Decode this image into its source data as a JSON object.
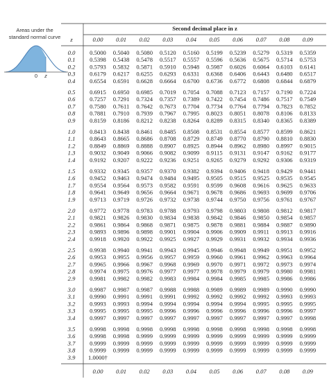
{
  "side": {
    "caption": "Areas under the standard normal curve",
    "origin_label": "0",
    "z_label": "z"
  },
  "table": {
    "title": "Second decimal place in z",
    "z_header": "z",
    "columns": [
      "0.00",
      "0.01",
      "0.02",
      "0.03",
      "0.04",
      "0.05",
      "0.06",
      "0.07",
      "0.08",
      "0.09"
    ],
    "rows": [
      {
        "z": "0.0",
        "values": [
          "0.5000",
          "0.5040",
          "0.5080",
          "0.5120",
          "0.5160",
          "0.5199",
          "0.5239",
          "0.5279",
          "0.5319",
          "0.5359"
        ]
      },
      {
        "z": "0.1",
        "values": [
          "0.5398",
          "0.5438",
          "0.5478",
          "0.5517",
          "0.5557",
          "0.5596",
          "0.5636",
          "0.5675",
          "0.5714",
          "0.5753"
        ]
      },
      {
        "z": "0.2",
        "values": [
          "0.5793",
          "0.5832",
          "0.5871",
          "0.5910",
          "0.5948",
          "0.5987",
          "0.6026",
          "0.6064",
          "0.6103",
          "0.6141"
        ]
      },
      {
        "z": "0.3",
        "values": [
          "0.6179",
          "0.6217",
          "0.6255",
          "0.6293",
          "0.6331",
          "0.6368",
          "0.6406",
          "0.6443",
          "0.6480",
          "0.6517"
        ]
      },
      {
        "z": "0.4",
        "values": [
          "0.6554",
          "0.6591",
          "0.6628",
          "0.6664",
          "0.6700",
          "0.6736",
          "0.6772",
          "0.6808",
          "0.6844",
          "0.6879"
        ]
      },
      {
        "z": "0.5",
        "values": [
          "0.6915",
          "0.6950",
          "0.6985",
          "0.7019",
          "0.7054",
          "0.7088",
          "0.7123",
          "0.7157",
          "0.7190",
          "0.7224"
        ]
      },
      {
        "z": "0.6",
        "values": [
          "0.7257",
          "0.7291",
          "0.7324",
          "0.7357",
          "0.7389",
          "0.7422",
          "0.7454",
          "0.7486",
          "0.7517",
          "0.7549"
        ]
      },
      {
        "z": "0.7",
        "values": [
          "0.7580",
          "0.7611",
          "0.7642",
          "0.7673",
          "0.7704",
          "0.7734",
          "0.7764",
          "0.7794",
          "0.7823",
          "0.7852"
        ]
      },
      {
        "z": "0.8",
        "values": [
          "0.7881",
          "0.7910",
          "0.7939",
          "0.7967",
          "0.7995",
          "0.8023",
          "0.8051",
          "0.8078",
          "0.8106",
          "0.8133"
        ]
      },
      {
        "z": "0.9",
        "values": [
          "0.8159",
          "0.8186",
          "0.8212",
          "0.8238",
          "0.8264",
          "0.8289",
          "0.8315",
          "0.8340",
          "0.8365",
          "0.8389"
        ]
      },
      {
        "z": "1.0",
        "values": [
          "0.8413",
          "0.8438",
          "0.8461",
          "0.8485",
          "0.8508",
          "0.8531",
          "0.8554",
          "0.8577",
          "0.8599",
          "0.8621"
        ]
      },
      {
        "z": "1.1",
        "values": [
          "0.8643",
          "0.8665",
          "0.8686",
          "0.8708",
          "0.8729",
          "0.8749",
          "0.8770",
          "0.8790",
          "0.8810",
          "0.8830"
        ]
      },
      {
        "z": "1.2",
        "values": [
          "0.8849",
          "0.8869",
          "0.8888",
          "0.8907",
          "0.8925",
          "0.8944",
          "0.8962",
          "0.8980",
          "0.8997",
          "0.9015"
        ]
      },
      {
        "z": "1.3",
        "values": [
          "0.9032",
          "0.9049",
          "0.9066",
          "0.9082",
          "0.9099",
          "0.9115",
          "0.9131",
          "0.9147",
          "0.9162",
          "0.9177"
        ]
      },
      {
        "z": "1.4",
        "values": [
          "0.9192",
          "0.9207",
          "0.9222",
          "0.9236",
          "0.9251",
          "0.9265",
          "0.9279",
          "0.9292",
          "0.9306",
          "0.9319"
        ]
      },
      {
        "z": "1.5",
        "values": [
          "0.9332",
          "0.9345",
          "0.9357",
          "0.9370",
          "0.9382",
          "0.9394",
          "0.9406",
          "0.9418",
          "0.9429",
          "0.9441"
        ]
      },
      {
        "z": "1.6",
        "values": [
          "0.9452",
          "0.9463",
          "0.9474",
          "0.9484",
          "0.9495",
          "0.9505",
          "0.9515",
          "0.9525",
          "0.9535",
          "0.9545"
        ]
      },
      {
        "z": "1.7",
        "values": [
          "0.9554",
          "0.9564",
          "0.9573",
          "0.9582",
          "0.9591",
          "0.9599",
          "0.9608",
          "0.9616",
          "0.9625",
          "0.9633"
        ]
      },
      {
        "z": "1.8",
        "values": [
          "0.9641",
          "0.9649",
          "0.9656",
          "0.9664",
          "0.9671",
          "0.9678",
          "0.9686",
          "0.9693",
          "0.9699",
          "0.9706"
        ]
      },
      {
        "z": "1.9",
        "values": [
          "0.9713",
          "0.9719",
          "0.9726",
          "0.9732",
          "0.9738",
          "0.9744",
          "0.9750",
          "0.9756",
          "0.9761",
          "0.9767"
        ]
      },
      {
        "z": "2.0",
        "values": [
          "0.9772",
          "0.9778",
          "0.9783",
          "0.9788",
          "0.9793",
          "0.9798",
          "0.9803",
          "0.9808",
          "0.9812",
          "0.9817"
        ]
      },
      {
        "z": "2.1",
        "values": [
          "0.9821",
          "0.9826",
          "0.9830",
          "0.9834",
          "0.9838",
          "0.9842",
          "0.9846",
          "0.9850",
          "0.9854",
          "0.9857"
        ]
      },
      {
        "z": "2.2",
        "values": [
          "0.9861",
          "0.9864",
          "0.9868",
          "0.9871",
          "0.9875",
          "0.9878",
          "0.9881",
          "0.9884",
          "0.9887",
          "0.9890"
        ]
      },
      {
        "z": "2.3",
        "values": [
          "0.9893",
          "0.9896",
          "0.9898",
          "0.9901",
          "0.9904",
          "0.9906",
          "0.9909",
          "0.9911",
          "0.9913",
          "0.9916"
        ]
      },
      {
        "z": "2.4",
        "values": [
          "0.9918",
          "0.9920",
          "0.9922",
          "0.9925",
          "0.9927",
          "0.9929",
          "0.9931",
          "0.9932",
          "0.9934",
          "0.9936"
        ]
      },
      {
        "z": "2.5",
        "values": [
          "0.9938",
          "0.9940",
          "0.9941",
          "0.9943",
          "0.9945",
          "0.9946",
          "0.9948",
          "0.9949",
          "0.9951",
          "0.9952"
        ]
      },
      {
        "z": "2.6",
        "values": [
          "0.9953",
          "0.9955",
          "0.9956",
          "0.9957",
          "0.9959",
          "0.9960",
          "0.9961",
          "0.9962",
          "0.9963",
          "0.9964"
        ]
      },
      {
        "z": "2.7",
        "values": [
          "0.9965",
          "0.9966",
          "0.9967",
          "0.9968",
          "0.9969",
          "0.9970",
          "0.9971",
          "0.9972",
          "0.9973",
          "0.9974"
        ]
      },
      {
        "z": "2.8",
        "values": [
          "0.9974",
          "0.9975",
          "0.9976",
          "0.9977",
          "0.9977",
          "0.9978",
          "0.9979",
          "0.9979",
          "0.9980",
          "0.9981"
        ]
      },
      {
        "z": "2.9",
        "values": [
          "0.9981",
          "0.9982",
          "0.9982",
          "0.9983",
          "0.9984",
          "0.9984",
          "0.9985",
          "0.9985",
          "0.9986",
          "0.9986"
        ]
      },
      {
        "z": "3.0",
        "values": [
          "0.9987",
          "0.9987",
          "0.9987",
          "0.9988",
          "0.9988",
          "0.9989",
          "0.9989",
          "0.9989",
          "0.9990",
          "0.9990"
        ]
      },
      {
        "z": "3.1",
        "values": [
          "0.9990",
          "0.9991",
          "0.9991",
          "0.9991",
          "0.9992",
          "0.9992",
          "0.9992",
          "0.9992",
          "0.9993",
          "0.9993"
        ]
      },
      {
        "z": "3.2",
        "values": [
          "0.9993",
          "0.9993",
          "0.9994",
          "0.9994",
          "0.9994",
          "0.9994",
          "0.9994",
          "0.9995",
          "0.9995",
          "0.9995"
        ]
      },
      {
        "z": "3.3",
        "values": [
          "0.9995",
          "0.9995",
          "0.9995",
          "0.9996",
          "0.9996",
          "0.9996",
          "0.9996",
          "0.9996",
          "0.9996",
          "0.9997"
        ]
      },
      {
        "z": "3.4",
        "values": [
          "0.9997",
          "0.9997",
          "0.9997",
          "0.9997",
          "0.9997",
          "0.9997",
          "0.9997",
          "0.9997",
          "0.9997",
          "0.9998"
        ]
      },
      {
        "z": "3.5",
        "values": [
          "0.9998",
          "0.9998",
          "0.9998",
          "0.9998",
          "0.9998",
          "0.9998",
          "0.9998",
          "0.9998",
          "0.9998",
          "0.9998"
        ]
      },
      {
        "z": "3.6",
        "values": [
          "0.9998",
          "0.9998",
          "0.9999",
          "0.9999",
          "0.9999",
          "0.9999",
          "0.9999",
          "0.9999",
          "0.9999",
          "0.9999"
        ]
      },
      {
        "z": "3.7",
        "values": [
          "0.9999",
          "0.9999",
          "0.9999",
          "0.9999",
          "0.9999",
          "0.9999",
          "0.9999",
          "0.9999",
          "0.9999",
          "0.9999"
        ]
      },
      {
        "z": "3.8",
        "values": [
          "0.9999",
          "0.9999",
          "0.9999",
          "0.9999",
          "0.9999",
          "0.9999",
          "0.9999",
          "0.9999",
          "0.9999",
          "0.9999"
        ]
      },
      {
        "z": "3.9",
        "values": [
          "1.0000†"
        ]
      }
    ]
  }
}
